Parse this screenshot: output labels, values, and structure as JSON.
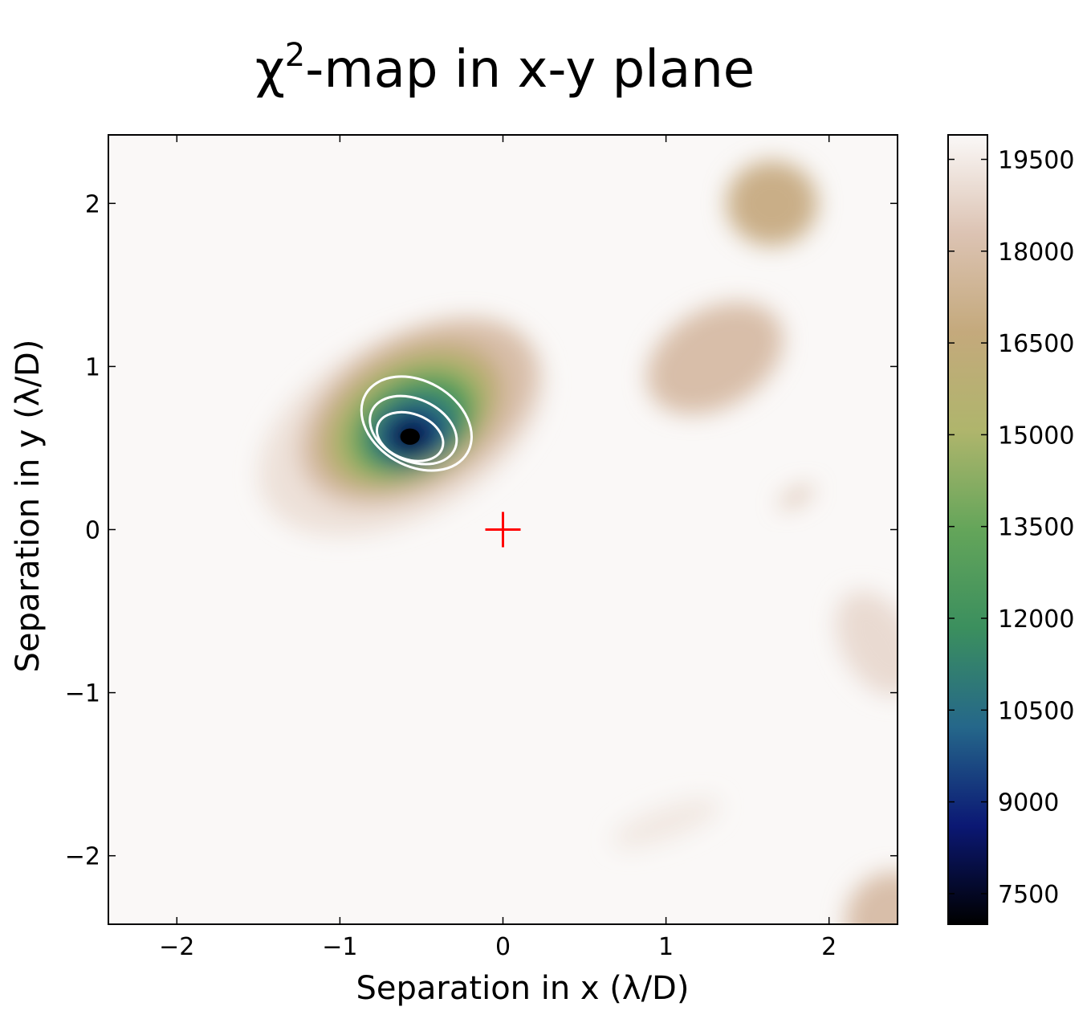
{
  "chart_data": {
    "type": "heatmap",
    "title_main": "χ",
    "title_sup": "2",
    "title_rest": "-map in x-y plane",
    "xlabel": "Separation in x (λ/D)",
    "ylabel": "Separation in y (λ/D)",
    "xlim": [
      -2.42,
      2.42
    ],
    "ylim": [
      -2.42,
      2.42
    ],
    "xticks": [
      -2,
      -1,
      0,
      1,
      2
    ],
    "yticks": [
      -2,
      -1,
      0,
      1,
      2
    ],
    "xtick_labels": [
      "−2",
      "−1",
      "0",
      "1",
      "2"
    ],
    "ytick_labels": [
      "−2",
      "−1",
      "0",
      "1",
      "2"
    ],
    "colorbar": {
      "range": [
        7000,
        19900
      ],
      "ticks": [
        7500,
        9000,
        10500,
        12000,
        13500,
        15000,
        16500,
        18000,
        19500
      ],
      "tick_labels": [
        "7500",
        "9000",
        "10500",
        "12000",
        "13500",
        "15000",
        "16500",
        "18000",
        "19500"
      ],
      "colormap": "gist_earth_r",
      "colormap_stops": [
        "#000000",
        "#0b1874",
        "#25678a",
        "#3b8f5e",
        "#64a55a",
        "#afb56c",
        "#c4a97c",
        "#dcc3b3",
        "#faf8f7"
      ]
    },
    "background_value": 19900,
    "features": [
      {
        "kind": "minimum",
        "x": -0.57,
        "y": 0.57,
        "value": 7000
      },
      {
        "kind": "local-low",
        "x": 1.65,
        "y": 2.0,
        "value": 17000
      },
      {
        "kind": "local-low",
        "x": 1.3,
        "y": 1.05,
        "value": 18000
      },
      {
        "kind": "local-low",
        "x": 1.8,
        "y": 0.2,
        "value": 18200
      },
      {
        "kind": "local-low",
        "x": 1.0,
        "y": -1.8,
        "value": 19400
      },
      {
        "kind": "local-low",
        "x": 2.3,
        "y": -0.7,
        "value": 19000
      },
      {
        "kind": "local-low",
        "x": 2.4,
        "y": -2.4,
        "value": 18000
      }
    ],
    "contours": [
      {
        "level": 1,
        "color": "#ffffff"
      },
      {
        "level": 2,
        "color": "#ffffff"
      },
      {
        "level": 3,
        "color": "#ffffff"
      }
    ],
    "marker": {
      "shape": "plus",
      "x": 0,
      "y": 0,
      "color": "#ff0000"
    }
  }
}
